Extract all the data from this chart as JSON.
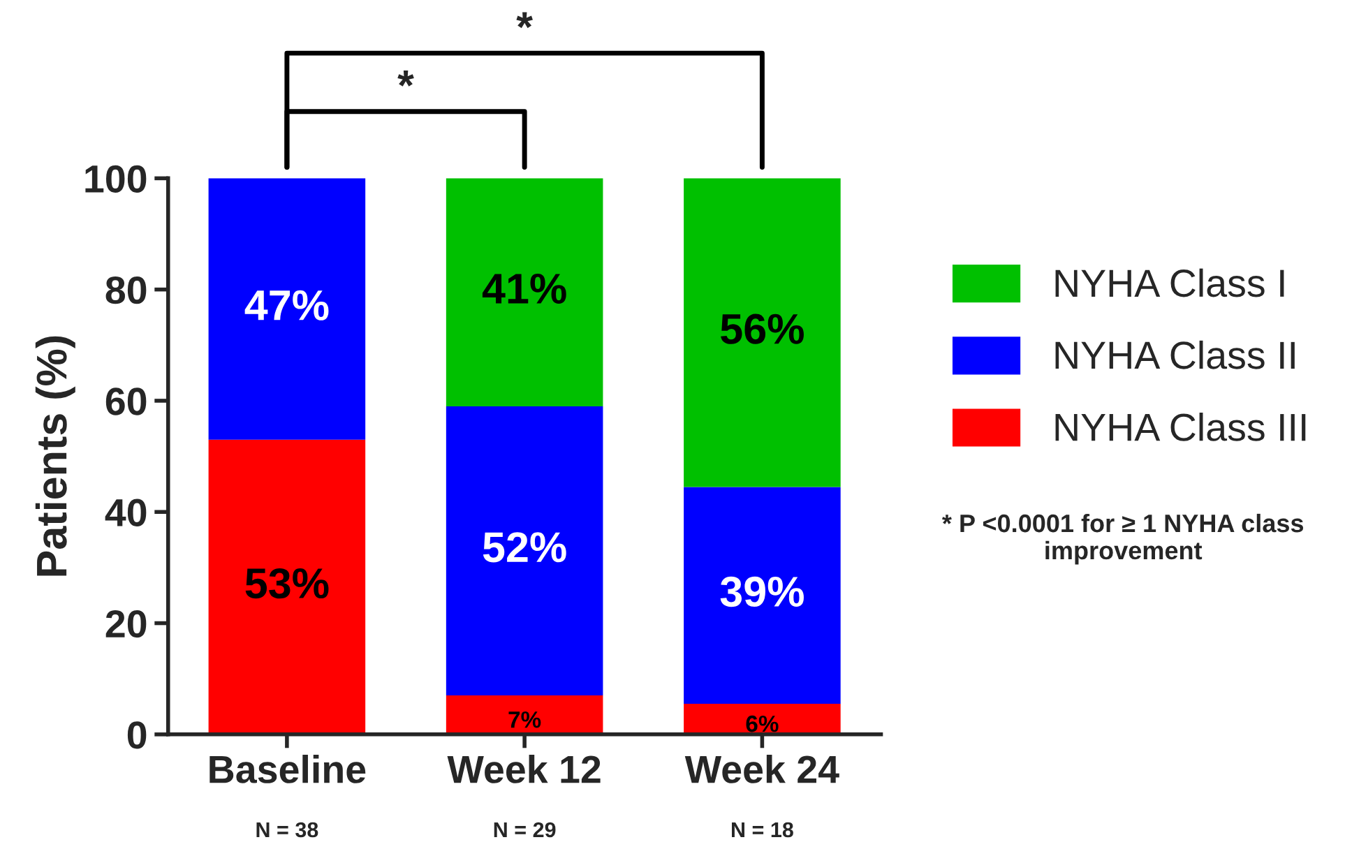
{
  "chart_data": {
    "type": "bar",
    "stacked": true,
    "ylabel": "Patients (%)",
    "categories": [
      "Baseline",
      "Week 12",
      "Week 24"
    ],
    "series": [
      {
        "name": "NYHA Class III",
        "color": "#ff0000",
        "values": [
          53,
          7,
          5.5
        ],
        "value_labels": [
          "53%",
          "7%",
          "6%"
        ]
      },
      {
        "name": "NYHA Class II",
        "color": "#0000ff",
        "values": [
          47,
          52,
          39
        ],
        "value_labels": [
          "47%",
          "52%",
          "39%"
        ]
      },
      {
        "name": "NYHA Class I",
        "color": "#00c000",
        "values": [
          null,
          41,
          55.5
        ],
        "value_labels": [
          null,
          "41%",
          "56%"
        ]
      }
    ],
    "ylim": [
      0,
      100
    ],
    "yticks": [
      0,
      20,
      40,
      60,
      80,
      100
    ],
    "grid": false,
    "legend": "right",
    "annotations": [
      "*",
      "*",
      "N = 38",
      "N = 29",
      "N = 18",
      "* P <0.0001 for ≥ 1 NYHA class improvement"
    ]
  }
}
